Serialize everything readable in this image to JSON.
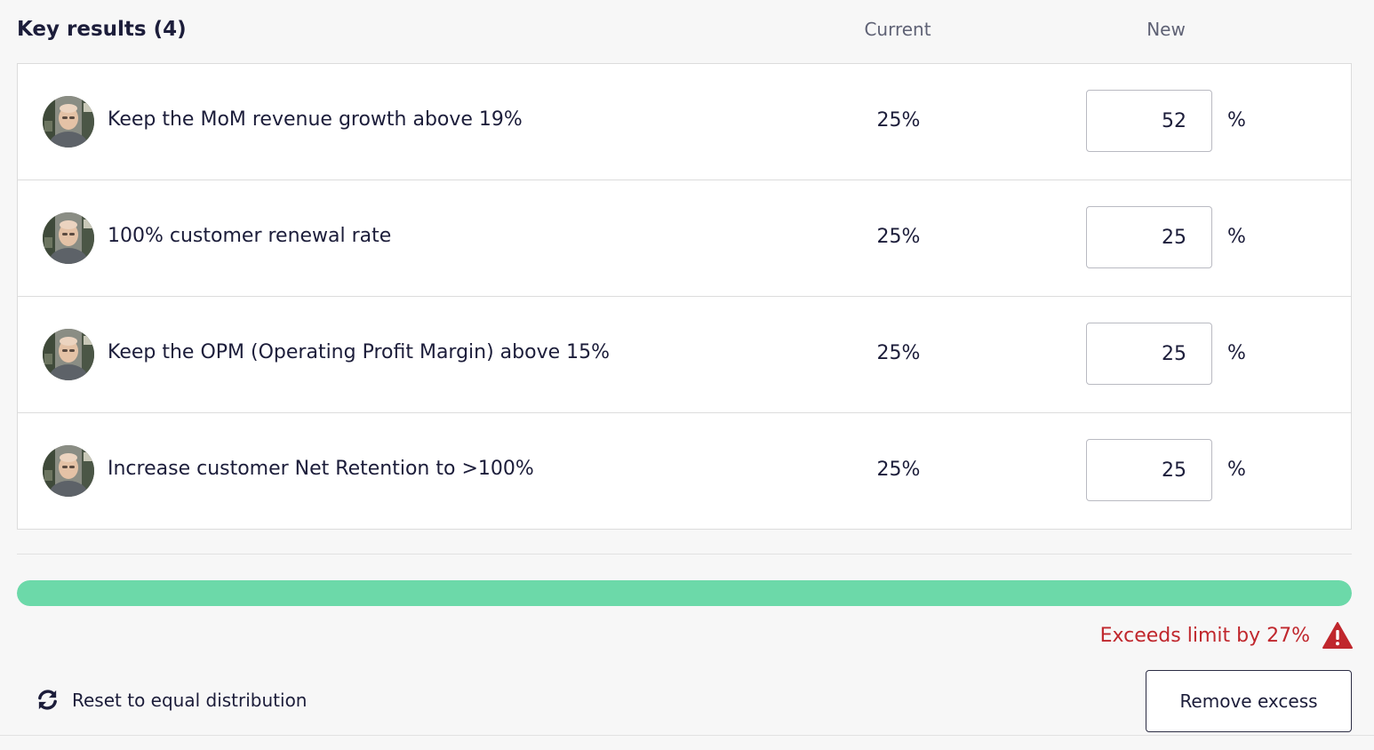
{
  "header": {
    "title": "Key results (4)",
    "col_current": "Current",
    "col_new": "New"
  },
  "key_results": [
    {
      "title": "Keep the MoM revenue growth above 19%",
      "current": "25%",
      "new_value": "52",
      "unit": "%"
    },
    {
      "title": "100% customer renewal rate",
      "current": "25%",
      "new_value": "25",
      "unit": "%"
    },
    {
      "title": "Keep the OPM (Operating Profit Margin) above 15%",
      "current": "25%",
      "new_value": "25",
      "unit": "%"
    },
    {
      "title": "Increase customer Net Retention to >100%",
      "current": "25%",
      "new_value": "25",
      "unit": "%"
    }
  ],
  "progress": {
    "fill_percent": 100,
    "fill_color": "#6cd9a9"
  },
  "warning": {
    "text": "Exceeds limit by 27%",
    "icon": "warning-triangle-icon",
    "color": "#c0272d"
  },
  "actions": {
    "reset_label": "Reset to equal distribution",
    "reset_icon": "refresh-icon",
    "remove_label": "Remove excess"
  }
}
